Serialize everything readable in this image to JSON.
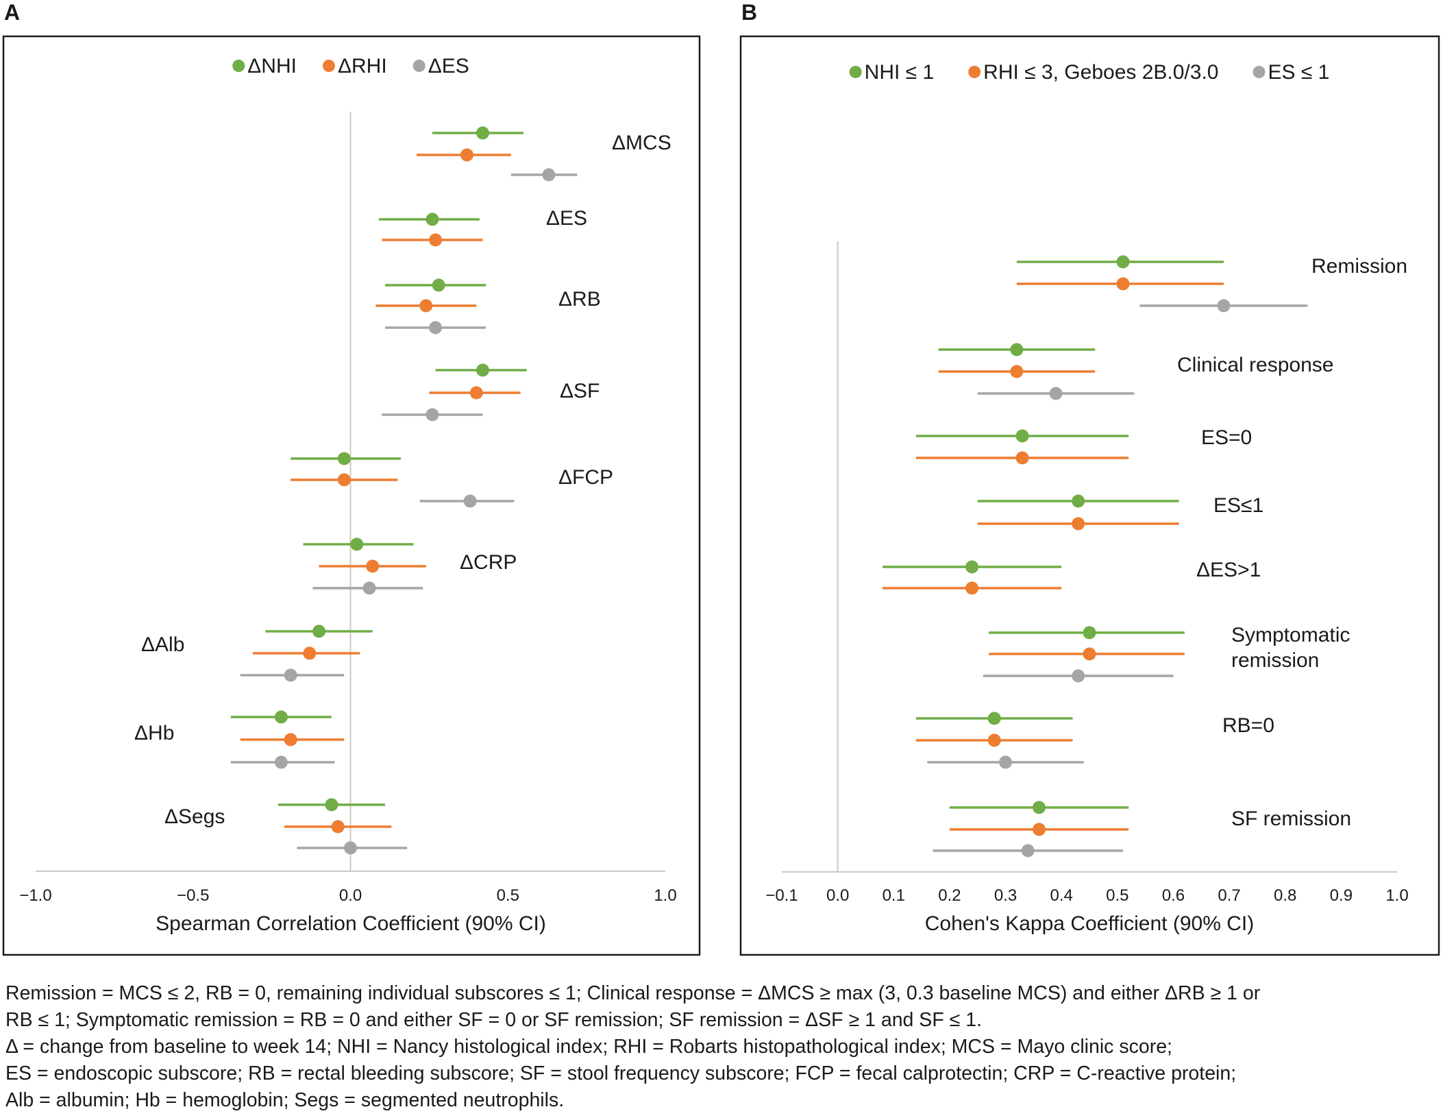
{
  "chart_data": [
    {
      "panel": "A",
      "type": "scatter",
      "subtype": "forest_plot",
      "xlabel": "Spearman Correlation Coefficient (90% CI)",
      "xlim": [
        -1.0,
        1.0
      ],
      "xticks": [
        "−1.0",
        "−0.5",
        "0.0",
        "0.5",
        "1.0"
      ],
      "reference_line": 0,
      "grid": false,
      "legend_position": "top",
      "legend": [
        {
          "name": "ΔNHI",
          "color": "#70ad47"
        },
        {
          "name": "ΔRHI",
          "color": "#ed7d31"
        },
        {
          "name": "ΔES",
          "color": "#a5a5a5"
        }
      ],
      "groups": [
        {
          "label": "ΔMCS",
          "points": [
            {
              "series": "ΔNHI",
              "estimate": 0.42,
              "lower": 0.26,
              "upper": 0.55
            },
            {
              "series": "ΔRHI",
              "estimate": 0.37,
              "lower": 0.21,
              "upper": 0.51
            },
            {
              "series": "ΔES",
              "estimate": 0.63,
              "lower": 0.51,
              "upper": 0.72
            }
          ]
        },
        {
          "label": "ΔES",
          "points": [
            {
              "series": "ΔNHI",
              "estimate": 0.26,
              "lower": 0.09,
              "upper": 0.41
            },
            {
              "series": "ΔRHI",
              "estimate": 0.27,
              "lower": 0.1,
              "upper": 0.42
            }
          ]
        },
        {
          "label": "ΔRB",
          "points": [
            {
              "series": "ΔNHI",
              "estimate": 0.28,
              "lower": 0.11,
              "upper": 0.43
            },
            {
              "series": "ΔRHI",
              "estimate": 0.24,
              "lower": 0.08,
              "upper": 0.4
            },
            {
              "series": "ΔES",
              "estimate": 0.27,
              "lower": 0.11,
              "upper": 0.43
            }
          ]
        },
        {
          "label": "ΔSF",
          "points": [
            {
              "series": "ΔNHI",
              "estimate": 0.42,
              "lower": 0.27,
              "upper": 0.56
            },
            {
              "series": "ΔRHI",
              "estimate": 0.4,
              "lower": 0.25,
              "upper": 0.54
            },
            {
              "series": "ΔES",
              "estimate": 0.26,
              "lower": 0.1,
              "upper": 0.42
            }
          ]
        },
        {
          "label": "ΔFCP",
          "points": [
            {
              "series": "ΔNHI",
              "estimate": -0.02,
              "lower": -0.19,
              "upper": 0.16
            },
            {
              "series": "ΔRHI",
              "estimate": -0.02,
              "lower": -0.19,
              "upper": 0.15
            },
            {
              "series": "ΔES",
              "estimate": 0.38,
              "lower": 0.22,
              "upper": 0.52
            }
          ]
        },
        {
          "label": "ΔCRP",
          "points": [
            {
              "series": "ΔNHI",
              "estimate": 0.02,
              "lower": -0.15,
              "upper": 0.2
            },
            {
              "series": "ΔRHI",
              "estimate": 0.07,
              "lower": -0.1,
              "upper": 0.24
            },
            {
              "series": "ΔES",
              "estimate": 0.06,
              "lower": -0.12,
              "upper": 0.23
            }
          ]
        },
        {
          "label": "ΔAlb",
          "points": [
            {
              "series": "ΔNHI",
              "estimate": -0.1,
              "lower": -0.27,
              "upper": 0.07
            },
            {
              "series": "ΔRHI",
              "estimate": -0.13,
              "lower": -0.31,
              "upper": 0.03
            },
            {
              "series": "ΔES",
              "estimate": -0.19,
              "lower": -0.35,
              "upper": -0.02
            }
          ]
        },
        {
          "label": "ΔHb",
          "points": [
            {
              "series": "ΔNHI",
              "estimate": -0.22,
              "lower": -0.38,
              "upper": -0.06
            },
            {
              "series": "ΔRHI",
              "estimate": -0.19,
              "lower": -0.35,
              "upper": -0.02
            },
            {
              "series": "ΔES",
              "estimate": -0.22,
              "lower": -0.38,
              "upper": -0.05
            }
          ]
        },
        {
          "label": "ΔSegs",
          "points": [
            {
              "series": "ΔNHI",
              "estimate": -0.06,
              "lower": -0.23,
              "upper": 0.11
            },
            {
              "series": "ΔRHI",
              "estimate": -0.04,
              "lower": -0.21,
              "upper": 0.13
            },
            {
              "series": "ΔES",
              "estimate": 0.0,
              "lower": -0.17,
              "upper": 0.18
            }
          ]
        }
      ]
    },
    {
      "panel": "B",
      "type": "scatter",
      "subtype": "forest_plot",
      "xlabel": "Cohen's Kappa Coefficient (90% CI)",
      "xlim": [
        -0.1,
        1.0
      ],
      "xticks": [
        "−0.1",
        "0.0",
        "0.1",
        "0.2",
        "0.3",
        "0.4",
        "0.5",
        "0.6",
        "0.7",
        "0.8",
        "0.9",
        "1.0"
      ],
      "reference_line": 0,
      "grid": false,
      "legend_position": "top",
      "legend": [
        {
          "name": "NHI ≤ 1",
          "color": "#70ad47"
        },
        {
          "name": "RHI ≤ 3, Geboes 2B.0/3.0",
          "color": "#ed7d31"
        },
        {
          "name": "ES ≤ 1",
          "color": "#a5a5a5"
        }
      ],
      "groups": [
        {
          "label": [
            "Remission"
          ],
          "points": [
            {
              "series": "NHI ≤ 1",
              "estimate": 0.51,
              "lower": 0.32,
              "upper": 0.69
            },
            {
              "series": "RHI ≤ 3, Geboes 2B.0/3.0",
              "estimate": 0.51,
              "lower": 0.32,
              "upper": 0.69
            },
            {
              "series": "ES ≤ 1",
              "estimate": 0.69,
              "lower": 0.54,
              "upper": 0.84
            }
          ]
        },
        {
          "label": [
            "Clinical response"
          ],
          "points": [
            {
              "series": "NHI ≤ 1",
              "estimate": 0.32,
              "lower": 0.18,
              "upper": 0.46
            },
            {
              "series": "RHI ≤ 3, Geboes 2B.0/3.0",
              "estimate": 0.32,
              "lower": 0.18,
              "upper": 0.46
            },
            {
              "series": "ES ≤ 1",
              "estimate": 0.39,
              "lower": 0.25,
              "upper": 0.53
            }
          ]
        },
        {
          "label": [
            "ES=0"
          ],
          "points": [
            {
              "series": "NHI ≤ 1",
              "estimate": 0.33,
              "lower": 0.14,
              "upper": 0.52
            },
            {
              "series": "RHI ≤ 3, Geboes 2B.0/3.0",
              "estimate": 0.33,
              "lower": 0.14,
              "upper": 0.52
            }
          ]
        },
        {
          "label": [
            "ES≤1"
          ],
          "points": [
            {
              "series": "NHI ≤ 1",
              "estimate": 0.43,
              "lower": 0.25,
              "upper": 0.61
            },
            {
              "series": "RHI ≤ 3, Geboes 2B.0/3.0",
              "estimate": 0.43,
              "lower": 0.25,
              "upper": 0.61
            }
          ]
        },
        {
          "label": [
            "ΔES>1"
          ],
          "points": [
            {
              "series": "NHI ≤ 1",
              "estimate": 0.24,
              "lower": 0.08,
              "upper": 0.4
            },
            {
              "series": "RHI ≤ 3, Geboes 2B.0/3.0",
              "estimate": 0.24,
              "lower": 0.08,
              "upper": 0.4
            }
          ]
        },
        {
          "label": [
            "Symptomatic",
            "remission"
          ],
          "points": [
            {
              "series": "NHI ≤ 1",
              "estimate": 0.45,
              "lower": 0.27,
              "upper": 0.62
            },
            {
              "series": "RHI ≤ 3, Geboes 2B.0/3.0",
              "estimate": 0.45,
              "lower": 0.27,
              "upper": 0.62
            },
            {
              "series": "ES ≤ 1",
              "estimate": 0.43,
              "lower": 0.26,
              "upper": 0.6
            }
          ]
        },
        {
          "label": [
            "RB=0"
          ],
          "points": [
            {
              "series": "NHI ≤ 1",
              "estimate": 0.28,
              "lower": 0.14,
              "upper": 0.42
            },
            {
              "series": "RHI ≤ 3, Geboes 2B.0/3.0",
              "estimate": 0.28,
              "lower": 0.14,
              "upper": 0.42
            },
            {
              "series": "ES ≤ 1",
              "estimate": 0.3,
              "lower": 0.16,
              "upper": 0.44
            }
          ]
        },
        {
          "label": [
            "SF remission"
          ],
          "points": [
            {
              "series": "NHI ≤ 1",
              "estimate": 0.36,
              "lower": 0.2,
              "upper": 0.52
            },
            {
              "series": "RHI ≤ 3, Geboes 2B.0/3.0",
              "estimate": 0.36,
              "lower": 0.2,
              "upper": 0.52
            },
            {
              "series": "ES ≤ 1",
              "estimate": 0.34,
              "lower": 0.17,
              "upper": 0.51
            }
          ]
        }
      ]
    }
  ],
  "footnote": {
    "line1": "Remission = MCS ≤ 2, RB = 0, remaining individual subscores ≤ 1; Clinical response = ΔMCS ≥ max (3, 0.3 baseline MCS) and either ΔRB ≥ 1 or",
    "line2": "RB ≤ 1; Symptomatic remission = RB = 0 and either SF = 0 or SF remission; SF remission = ΔSF ≥ 1 and SF ≤ 1.",
    "line3": "Δ = change from baseline to week 14; NHI = Nancy histological index; RHI = Robarts histopathological index; MCS = Mayo clinic score;",
    "line4": "ES = endoscopic subscore; RB = rectal bleeding subscore; SF = stool frequency subscore; FCP = fecal calprotectin; CRP = C-reactive protein;",
    "line5": "Alb = albumin; Hb = hemoglobin; Segs = segmented neutrophils."
  }
}
